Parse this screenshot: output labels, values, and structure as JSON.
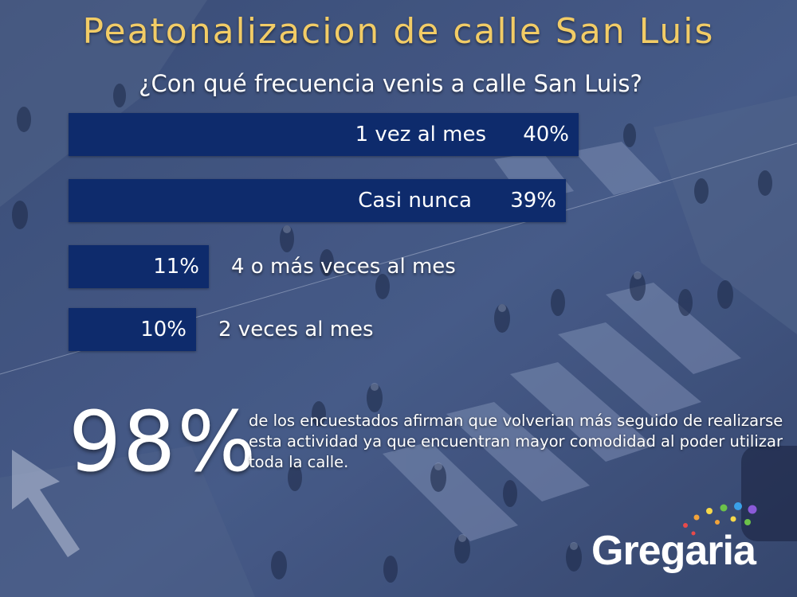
{
  "title": "Peatonalizacion de calle San Luis",
  "subtitle": "¿Con qué frecuencia venis a calle San Luis?",
  "colors": {
    "title": "#f2cc66",
    "bar": "#0e2b6c",
    "background_overlay": "#4a5f8c"
  },
  "chart_data": {
    "type": "bar",
    "orientation": "horizontal",
    "categories": [
      "1 vez al mes",
      "Casi nunca",
      "4 o más veces al mes",
      "2 veces al mes"
    ],
    "values": [
      40,
      39,
      11,
      10
    ],
    "value_labels": [
      "40%",
      "39%",
      "11%",
      "10%"
    ],
    "title": "¿Con qué frecuencia venis a calle San Luis?",
    "unit": "%",
    "xlim": [
      0,
      40
    ]
  },
  "highlight": {
    "value": "98%",
    "text": "de los encuestados afirman que volverian más seguido de realizarse esta actividad ya que encuentran mayor comodidad al poder utilizar toda la calle."
  },
  "logo": {
    "text": "Gregaria",
    "dot_colors": [
      "#e84a4a",
      "#f2a33a",
      "#f6d84a",
      "#6cc24a",
      "#3aa0e8",
      "#8a5ad8"
    ]
  }
}
